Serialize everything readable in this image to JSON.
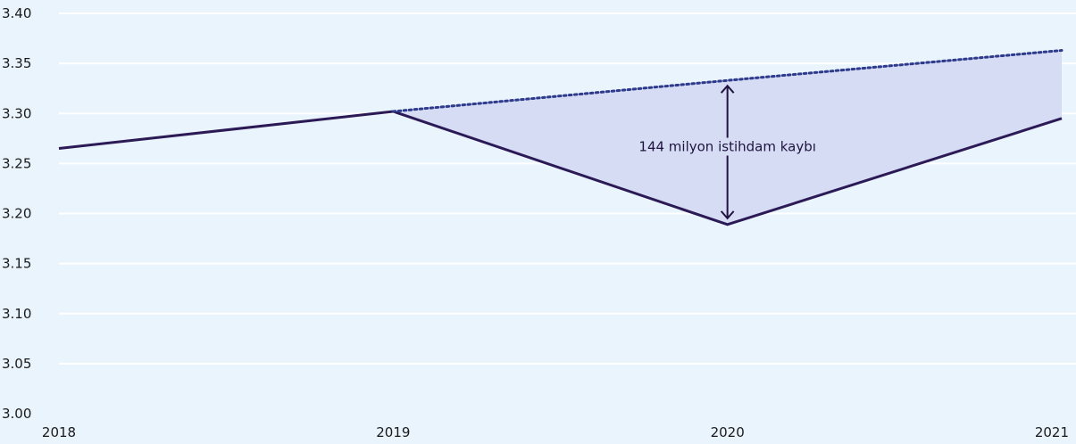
{
  "chart_data": {
    "type": "line",
    "categories": [
      "2018",
      "2019",
      "2020",
      "2021"
    ],
    "series": [
      {
        "values": [
          3.265,
          3.302,
          3.189,
          3.295
        ],
        "style": "solid",
        "color": "#2b1a55"
      },
      {
        "values": [
          null,
          3.302,
          3.333,
          3.363
        ],
        "style": "dotted",
        "color": "#2e3a8c"
      }
    ],
    "yticks": [
      "3.00",
      "3.05",
      "3.10",
      "3.15",
      "3.20",
      "3.25",
      "3.30",
      "3.35",
      "3.40"
    ],
    "ylim": [
      3.0,
      3.4
    ],
    "grid": true,
    "fill_between_color": "#d5dcf4",
    "annotation": {
      "text": "144 milyon istihdam kaybı",
      "x": "2020",
      "y_from": 3.189,
      "y_to": 3.333
    }
  }
}
